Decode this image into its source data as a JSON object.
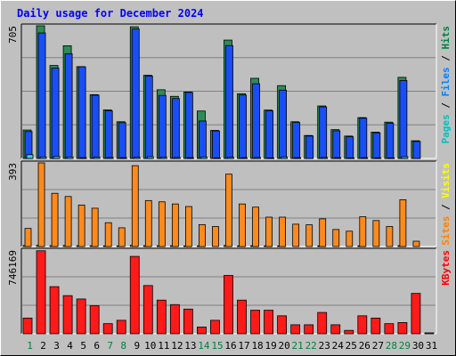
{
  "chart_data": {
    "type": "bar",
    "title": "Daily usage for December 2024",
    "categories": [
      "1",
      "2",
      "3",
      "4",
      "5",
      "6",
      "7",
      "8",
      "9",
      "10",
      "11",
      "12",
      "13",
      "14",
      "15",
      "16",
      "17",
      "18",
      "19",
      "20",
      "21",
      "22",
      "23",
      "24",
      "25",
      "26",
      "27",
      "28",
      "29",
      "30",
      "31"
    ],
    "weekend_days": [
      "1",
      "7",
      "8",
      "14",
      "15",
      "21",
      "22",
      "28",
      "29"
    ],
    "panels": [
      {
        "id": "hits",
        "ylabel_max": "705",
        "ymax": 705,
        "legend": [
          {
            "text": "Pages",
            "color": "#00c0c0"
          },
          {
            "text": " / ",
            "color": "#000000"
          },
          {
            "text": "Files",
            "color": "#0080ff"
          },
          {
            "text": " / ",
            "color": "#000000"
          },
          {
            "text": "Hits",
            "color": "#008040"
          }
        ],
        "series": [
          {
            "name": "Hits",
            "color": "#2e8b57",
            "values": [
              151,
              705,
              494,
              599,
              488,
              339,
              258,
              195,
              700,
              442,
              365,
              330,
              353,
              252,
              149,
              629,
              344,
              426,
              257,
              387,
              195,
              122,
              279,
              153,
              119,
              217,
              140,
              193,
              431,
              94,
              0
            ]
          },
          {
            "name": "Files",
            "color": "#1a4ef5",
            "values": [
              143,
              667,
              480,
              556,
              487,
              336,
              253,
              190,
              688,
              438,
              335,
              318,
              351,
              199,
              146,
              600,
              337,
              397,
              253,
              363,
              191,
              119,
              274,
              147,
              115,
              214,
              136,
              187,
              414,
              90,
              0
            ]
          },
          {
            "name": "Pages",
            "color": "#40d0d0",
            "values": [
              20,
              8,
              10,
              8,
              4,
              7,
              5,
              4,
              6,
              9,
              6,
              5,
              4,
              8,
              3,
              6,
              4,
              5,
              3,
              8,
              4,
              2,
              5,
              4,
              3,
              4,
              3,
              3,
              9,
              2,
              0
            ]
          }
        ]
      },
      {
        "id": "visits",
        "ylabel_max": "393",
        "ymax": 393,
        "legend": [
          {
            "text": "Sites",
            "color": "#ff8000"
          },
          {
            "text": " / ",
            "color": "#000000"
          },
          {
            "text": "Visits",
            "color": "#ffff00"
          }
        ],
        "series": [
          {
            "name": "Visits",
            "color": "#ffd700",
            "values": [
              5,
              6,
              4,
              5,
              4,
              4,
              3,
              3,
              6,
              4,
              4,
              4,
              3,
              3,
              2,
              5,
              3,
              4,
              3,
              3,
              2,
              2,
              3,
              2,
              2,
              3,
              2,
              2,
              4,
              1,
              0
            ]
          },
          {
            "name": "Sites",
            "color": "#ff8a1c",
            "values": [
              85,
              393,
              250,
              235,
              195,
              180,
              112,
              88,
              380,
              216,
              210,
              200,
              188,
              103,
              94,
              340,
              200,
              185,
              138,
              138,
              105,
              102,
              130,
              80,
              72,
              140,
              122,
              94,
              220,
              25,
              0
            ]
          }
        ]
      },
      {
        "id": "kbytes",
        "ylabel_max": "746169",
        "ymax": 746169,
        "legend": [
          {
            "text": "KBytes",
            "color": "#ff0000"
          }
        ],
        "series": [
          {
            "name": "KBytes",
            "color": "#ff1a1a",
            "values": [
              140000,
              740000,
              420000,
              340000,
              310000,
              250000,
              90000,
              120000,
              690000,
              430000,
              300000,
              260000,
              220000,
              60000,
              120000,
              520000,
              300000,
              210000,
              210000,
              160000,
              80000,
              80000,
              190000,
              80000,
              30000,
              160000,
              140000,
              90000,
              100000,
              360000,
              8000
            ]
          }
        ]
      }
    ]
  },
  "colors": {
    "frame": "#c0c0c0",
    "plot_bg": "#bfbfbf",
    "gridline": "#808080",
    "title": "#0000ff",
    "weekday_label": "#000000",
    "weekend_label": "#008040"
  }
}
